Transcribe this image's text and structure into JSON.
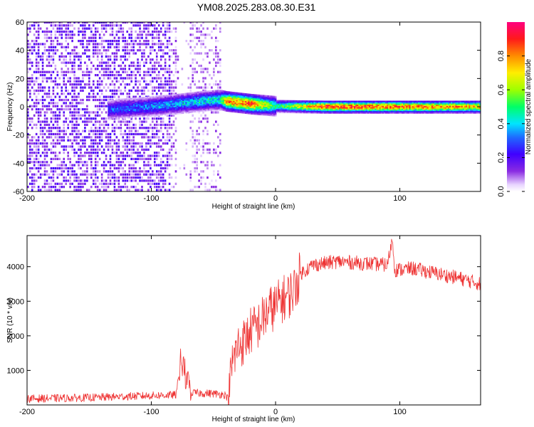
{
  "title": "YM08.2025.283.08.30.E31",
  "chart_data": [
    {
      "type": "heatmap",
      "name": "spectrogram",
      "xlabel": "Height of straight line (km)",
      "ylabel": "Frequency (Hz)",
      "xlim": [
        -200,
        165
      ],
      "ylim": [
        -60,
        60
      ],
      "xticks": [
        -200,
        -100,
        0,
        100
      ],
      "yticks": [
        -60,
        -40,
        -20,
        0,
        20,
        40,
        60
      ],
      "colorbar": {
        "label": "Normalized spectral amplitude",
        "range": [
          0,
          1
        ],
        "ticks": [
          "0.0",
          "0.2",
          "0.4",
          "0.6",
          "0.8"
        ]
      },
      "features": {
        "noise_region_x": [
          -200,
          -45
        ],
        "gap_region_x": [
          -80,
          -70
        ],
        "signal_track": [
          {
            "x": -135,
            "y": -2,
            "amp": 0.3
          },
          {
            "x": -105,
            "y": 0,
            "amp": 0.35
          },
          {
            "x": -80,
            "y": 2,
            "amp": 0.4
          },
          {
            "x": -60,
            "y": 4,
            "amp": 0.45
          },
          {
            "x": -45,
            "y": 5,
            "amp": 0.5
          },
          {
            "x": -40,
            "y": 4,
            "amp": 0.85
          },
          {
            "x": -20,
            "y": 2,
            "amp": 0.9
          },
          {
            "x": 0,
            "y": 0.5,
            "amp": 0.5
          },
          {
            "x": 40,
            "y": 0,
            "amp": 0.95
          },
          {
            "x": 100,
            "y": 0,
            "amp": 0.9
          },
          {
            "x": 165,
            "y": 0,
            "amp": 0.8
          }
        ]
      }
    },
    {
      "type": "line",
      "name": "snr",
      "xlabel": "Height of straight line (km)",
      "ylabel": "SNR (10 * v/v)",
      "xlim": [
        -200,
        165
      ],
      "ylim": [
        0,
        4900
      ],
      "xticks": [
        -200,
        -100,
        0,
        100
      ],
      "yticks": [
        1000,
        2000,
        3000,
        4000
      ],
      "color": "#ee3333",
      "series": [
        {
          "name": "SNR",
          "x": [
            -200,
            -150,
            -100,
            -80,
            -76,
            -70,
            -60,
            -50,
            -40,
            -38,
            -35,
            -30,
            -25,
            -20,
            -15,
            -10,
            -5,
            0,
            5,
            10,
            15,
            20,
            30,
            50,
            70,
            90,
            94,
            96,
            110,
            130,
            150,
            165
          ],
          "y": [
            180,
            210,
            270,
            290,
            1100,
            350,
            340,
            330,
            290,
            150,
            1200,
            1700,
            1850,
            2150,
            2250,
            2500,
            2750,
            2850,
            3050,
            3150,
            3350,
            3800,
            4050,
            4150,
            4100,
            4050,
            4800,
            3900,
            3950,
            3800,
            3650,
            3500
          ]
        }
      ]
    }
  ]
}
